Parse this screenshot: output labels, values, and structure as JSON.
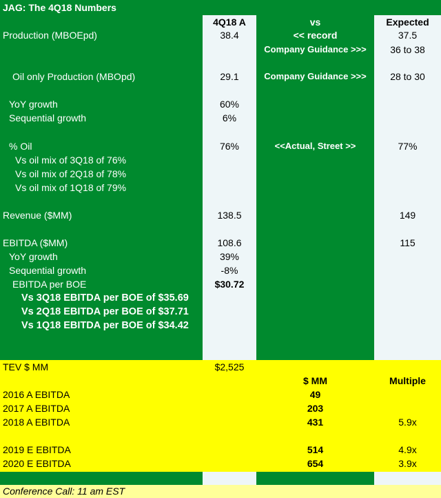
{
  "title": "JAG: The 4Q18 Numbers",
  "headers": {
    "actual": "4Q18 A",
    "vs": "vs",
    "expected": "Expected"
  },
  "rows": [
    {
      "label": "Production (MBOEpd)",
      "actual": "38.4",
      "vs": "<< record",
      "expected": "37.5"
    },
    {
      "label": "",
      "actual": "",
      "vs": "Company Guidance >>>",
      "expected": "36 to 38"
    },
    {
      "label": "Oil only Production (MBOpd)",
      "actual": "29.1",
      "vs": "Company Guidance >>>",
      "expected": "28 to 30"
    },
    {
      "label": "YoY growth",
      "actual": "60%"
    },
    {
      "label": "Sequential growth",
      "actual": "6%"
    },
    {
      "label": "% Oil",
      "actual": "76%",
      "vs": "<<Actual, Street >>",
      "expected": "77%"
    },
    {
      "label": "Vs oil mix of 3Q18 of 76%"
    },
    {
      "label": "Vs oil mix of 2Q18 of 78%"
    },
    {
      "label": "Vs oil mix of 1Q18 of 79%"
    },
    {
      "label": "Revenue ($MM)",
      "actual": "138.5",
      "expected": "149"
    },
    {
      "label": "EBITDA ($MM)",
      "actual": "108.6",
      "expected": "115"
    },
    {
      "label": "YoY growth",
      "actual": "39%"
    },
    {
      "label": "Sequential growth",
      "actual": "-8%"
    },
    {
      "label": "EBITDA per BOE",
      "actual": "$30.72"
    },
    {
      "label": "Vs 3Q18 EBITDA per BOE of $35.69"
    },
    {
      "label": "Vs 2Q18 EBITDA per BOE of $37.71"
    },
    {
      "label": "Vs 1Q18 EBITDA per BOE of $34.42"
    }
  ],
  "valuation": {
    "tev_label": "TEV  $ MM",
    "tev_value": "$2,525",
    "mm_header": "$ MM",
    "multiple_header": "Multiple",
    "rows": [
      {
        "label": "2016 A EBITDA",
        "mm": "49",
        "multiple": ""
      },
      {
        "label": "2017 A EBITDA",
        "mm": "203",
        "multiple": ""
      },
      {
        "label": "2018 A EBITDA",
        "mm": "431",
        "multiple": "5.9x"
      },
      {
        "label": "2019 E EBITDA",
        "mm": "514",
        "multiple": "4.9x"
      },
      {
        "label": "2020 E EBITDA",
        "mm": "654",
        "multiple": "3.9x"
      }
    ]
  },
  "footer": "Conference Call: 11 am EST",
  "colors": {
    "green": "#008a2e",
    "yellow": "#ffff00",
    "light_column": "#eef6f8"
  }
}
